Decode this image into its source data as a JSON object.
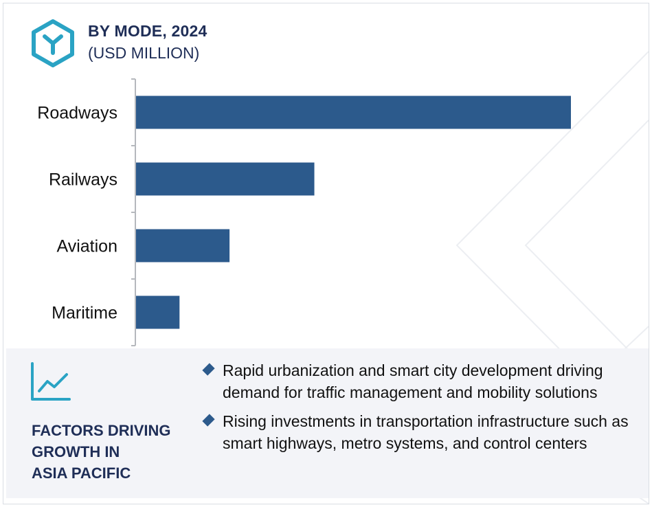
{
  "header": {
    "title": "BY MODE, 2024",
    "subtitle": "(USD MILLION)",
    "logo_icon": "hexagon-y-logo-icon"
  },
  "colors": {
    "bar": "#2c5a8c",
    "heading": "#1f2e57",
    "logo": "#2aa3c4",
    "panel_bg": "#f3f4f8"
  },
  "chart_data": {
    "type": "bar",
    "orientation": "horizontal",
    "categories": [
      "Roadways",
      "Railways",
      "Aviation",
      "Maritime"
    ],
    "values": [
      100,
      41,
      21.5,
      10
    ],
    "title": "BY MODE, 2024",
    "subtitle": "(USD MILLION)",
    "xlabel": "",
    "ylabel": "",
    "xlim": [
      0,
      100
    ],
    "grid": false,
    "legend": "none"
  },
  "factors": {
    "icon": "line-chart-trend-icon",
    "heading_lines": [
      "FACTORS DRIVING",
      "GROWTH IN",
      "ASIA PACIFIC"
    ],
    "items": [
      "Rapid urbanization and smart city development driving demand for traffic management and mobility solutions",
      "Rising investments in transportation infrastructure such as smart highways, metro systems, and control centers"
    ]
  }
}
